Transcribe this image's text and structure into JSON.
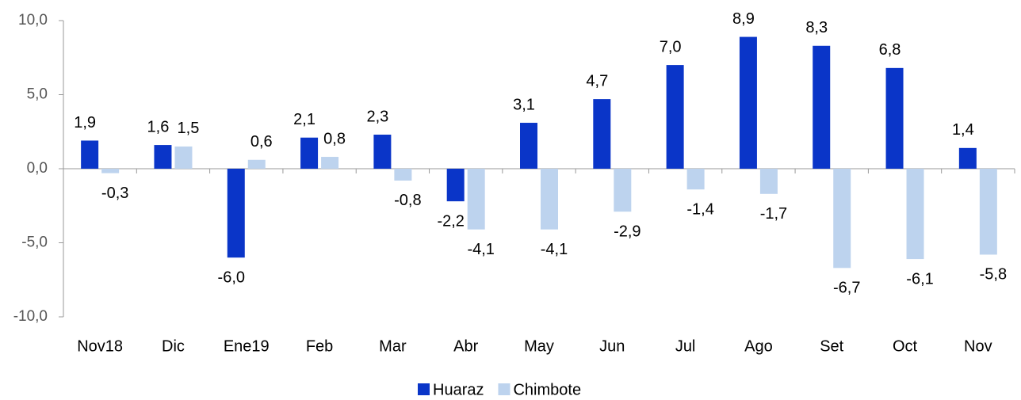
{
  "chart_data": {
    "type": "bar",
    "categories": [
      "Nov18",
      "Dic",
      "Ene19",
      "Feb",
      "Mar",
      "Abr",
      "May",
      "Jun",
      "Jul",
      "Ago",
      "Set",
      "Oct",
      "Nov"
    ],
    "series": [
      {
        "name": "Huaraz",
        "color": "#0a35c8",
        "values": [
          1.9,
          1.6,
          -6.0,
          2.1,
          2.3,
          -2.2,
          3.1,
          4.7,
          7.0,
          8.9,
          8.3,
          6.8,
          1.4
        ],
        "value_labels": [
          "1,9",
          "1,6",
          "-6,0",
          "2,1",
          "2,3",
          "-2,2",
          "3,1",
          "4,7",
          "7,0",
          "8,9",
          "8,3",
          "6,8",
          "1,4"
        ]
      },
      {
        "name": "Chimbote",
        "color": "#bdd3ee",
        "values": [
          -0.3,
          1.5,
          0.6,
          0.8,
          -0.8,
          -4.1,
          -4.1,
          -2.9,
          -1.4,
          -1.7,
          -6.7,
          -6.1,
          -5.8
        ],
        "value_labels": [
          "-0,3",
          "1,5",
          "0,6",
          "0,8",
          "-0,8",
          "-4,1",
          "-4,1",
          "-2,9",
          "-1,4",
          "-1,7",
          "-6,7",
          "-6,1",
          "-5,8"
        ]
      }
    ],
    "ylim": [
      -10,
      10
    ],
    "yticks": [
      {
        "value": -10,
        "label": "-10,0"
      },
      {
        "value": -5,
        "label": "-5,0"
      },
      {
        "value": 0,
        "label": "0,0"
      },
      {
        "value": 5,
        "label": "5,0"
      },
      {
        "value": 10,
        "label": "10,0"
      }
    ],
    "legend": "bottom"
  }
}
